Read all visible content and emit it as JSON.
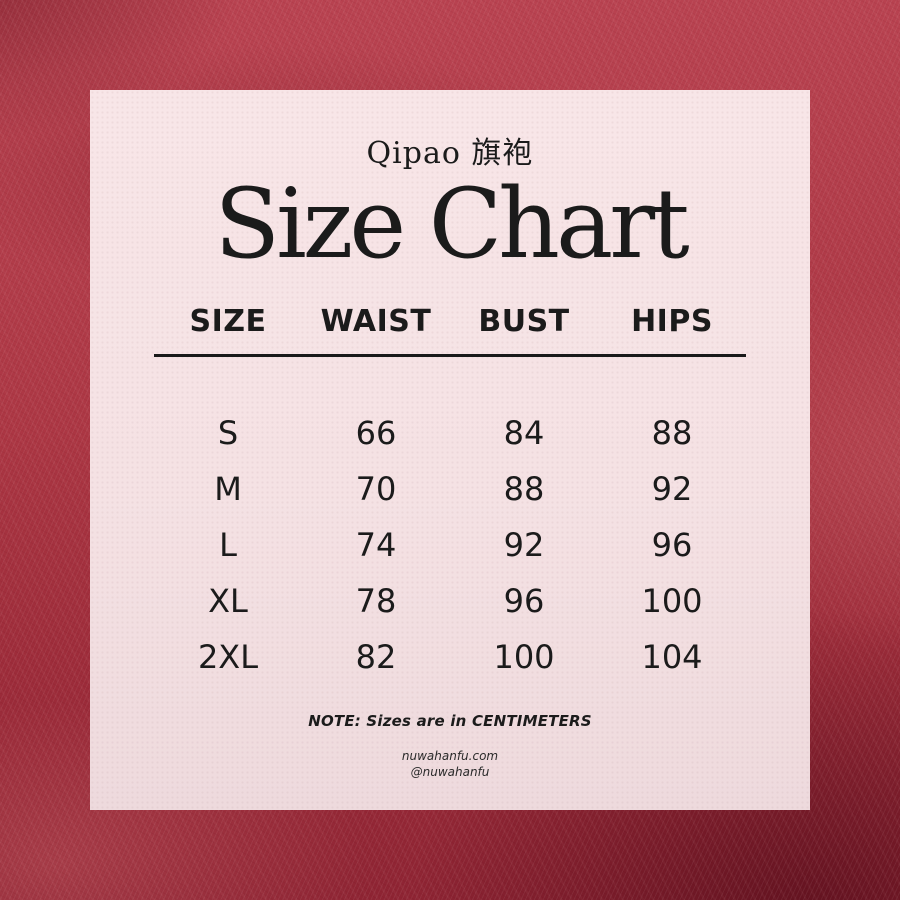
{
  "header": {
    "subtitle": "Qipao 旗袍",
    "title": "Size Chart"
  },
  "table": {
    "headers": [
      "SIZE",
      "WAIST",
      "BUST",
      "HIPS"
    ],
    "rows": [
      [
        "S",
        "66",
        "84",
        "88"
      ],
      [
        "M",
        "70",
        "88",
        "92"
      ],
      [
        "L",
        "74",
        "92",
        "96"
      ],
      [
        "XL",
        "78",
        "96",
        "100"
      ],
      [
        "2XL",
        "82",
        "100",
        "104"
      ]
    ]
  },
  "footer": {
    "note": "NOTE: Sizes are in CENTIMETERS",
    "website": "nuwahanfu.com",
    "social": "@nuwahanfu"
  },
  "colors": {
    "fabric_red": "#a83a47",
    "fabric_red_dark": "#8e2433",
    "card_pink": "#f6e3e5",
    "text": "#1b1b1b"
  },
  "chart_data": {
    "type": "table",
    "title": "Size Chart",
    "subtitle": "Qipao 旗袍",
    "columns": [
      "SIZE",
      "WAIST",
      "BUST",
      "HIPS"
    ],
    "rows": [
      {
        "size": "S",
        "waist": 66,
        "bust": 84,
        "hips": 88
      },
      {
        "size": "M",
        "waist": 70,
        "bust": 88,
        "hips": 92
      },
      {
        "size": "L",
        "waist": 74,
        "bust": 92,
        "hips": 96
      },
      {
        "size": "XL",
        "waist": 78,
        "bust": 96,
        "hips": 100
      },
      {
        "size": "2XL",
        "waist": 82,
        "bust": 100,
        "hips": 104
      }
    ],
    "units": "centimeters",
    "note": "NOTE: Sizes are in CENTIMETERS"
  }
}
